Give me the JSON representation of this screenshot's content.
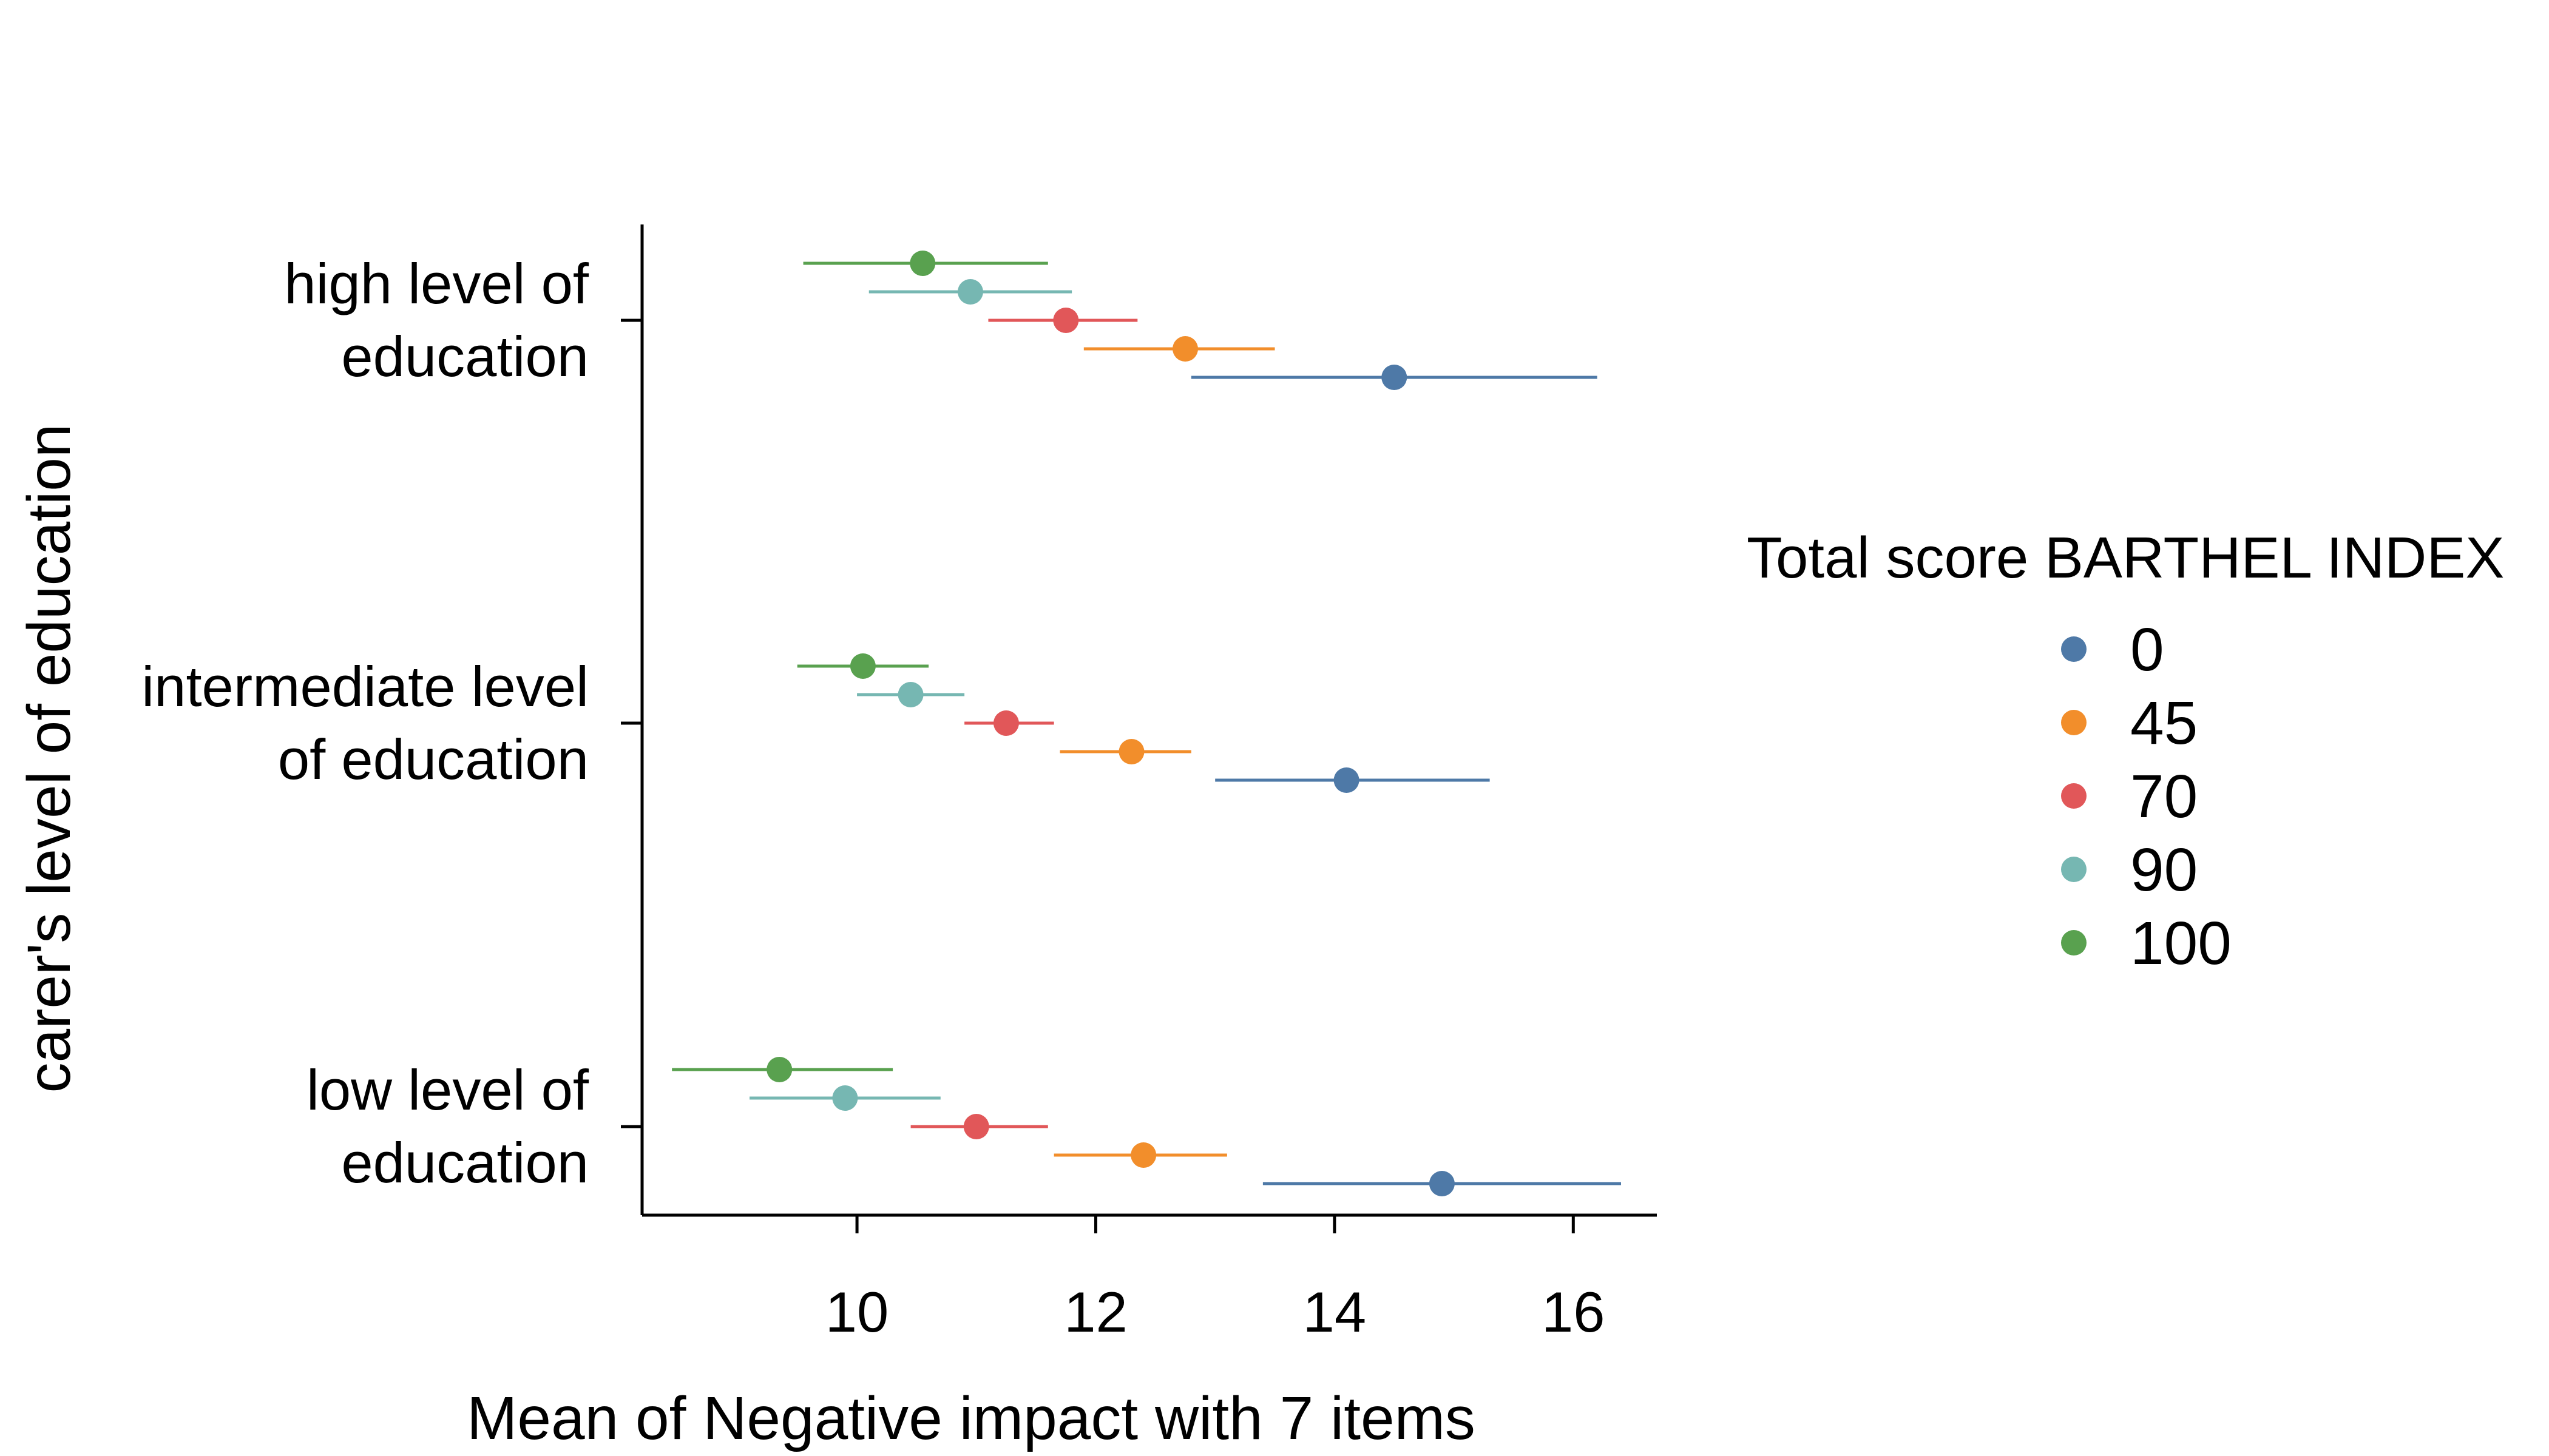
{
  "chart_data": {
    "type": "dot-errorbar",
    "title": "",
    "xlabel": "Mean of Negative impact with 7 items",
    "ylabel": "carer's level of education",
    "xlim": [
      8.2,
      16.7
    ],
    "xticks": [
      "10",
      "12",
      "14",
      "16"
    ],
    "xtick_values": [
      10,
      12,
      14,
      16
    ],
    "categories": [
      {
        "line1": "high level of",
        "line2": "education"
      },
      {
        "line1": "intermediate level",
        "line2": "of education"
      },
      {
        "line1": "low level of",
        "line2": "education"
      }
    ],
    "legend": {
      "title": "Total score BARTHEL INDEX",
      "position": "right"
    },
    "series": [
      {
        "name": "0",
        "color": "#4E79A7",
        "mean": [
          14.5,
          14.1,
          14.9
        ],
        "lower": [
          12.8,
          13.0,
          13.4
        ],
        "upper": [
          16.2,
          15.3,
          16.4
        ]
      },
      {
        "name": "45",
        "color": "#F28E2B",
        "mean": [
          12.75,
          12.3,
          12.4
        ],
        "lower": [
          11.9,
          11.7,
          11.65
        ],
        "upper": [
          13.5,
          12.8,
          13.1
        ]
      },
      {
        "name": "70",
        "color": "#E15759",
        "mean": [
          11.75,
          11.25,
          11.0
        ],
        "lower": [
          11.1,
          10.9,
          10.45
        ],
        "upper": [
          12.35,
          11.65,
          11.6
        ]
      },
      {
        "name": "90",
        "color": "#76B7B2",
        "mean": [
          10.95,
          10.45,
          9.9
        ],
        "lower": [
          10.1,
          10.0,
          9.1
        ],
        "upper": [
          11.8,
          10.9,
          10.7
        ]
      },
      {
        "name": "100",
        "color": "#59A14F",
        "mean": [
          10.55,
          10.05,
          9.35
        ],
        "lower": [
          9.55,
          9.5,
          8.45
        ],
        "upper": [
          11.6,
          10.6,
          10.3
        ]
      }
    ]
  }
}
